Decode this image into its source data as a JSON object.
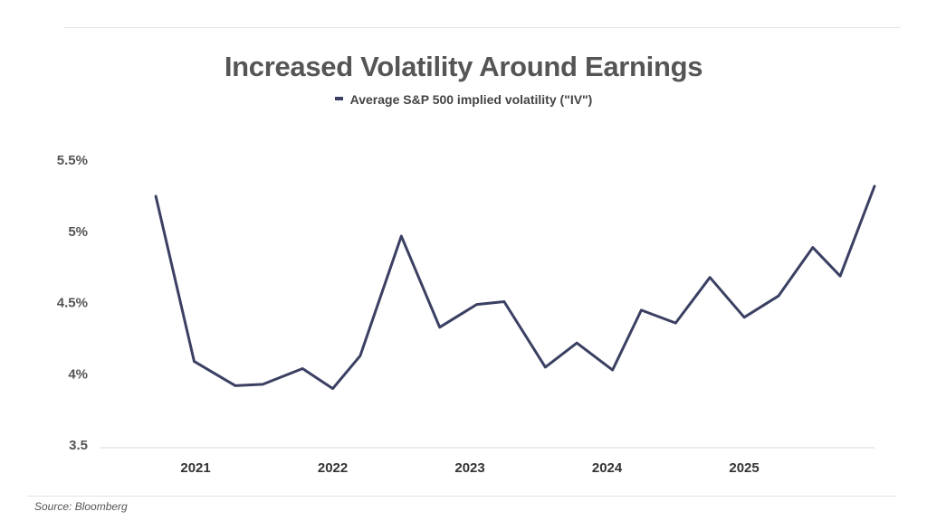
{
  "source": "Source: Bloomberg",
  "colors": {
    "line": "#3b4063",
    "axis": "#d9d9d9",
    "text": "#555555"
  },
  "chart_data": {
    "type": "line",
    "title": "Increased Volatility Around Earnings",
    "legend": "Average S&P 500 implied volatility (\"IV\")",
    "legend_position": "top-center",
    "grid": false,
    "ylim": [
      3.5,
      5.5
    ],
    "yticks": [
      {
        "value": 5.5,
        "label": "5.5%"
      },
      {
        "value": 5.0,
        "label": "5%"
      },
      {
        "value": 4.5,
        "label": "4.5%"
      },
      {
        "value": 4.0,
        "label": "4%"
      },
      {
        "value": 3.5,
        "label": "3.5"
      }
    ],
    "xlim": [
      2020.3,
      2025.95
    ],
    "xticks": [
      {
        "value": 2021,
        "label": "2021"
      },
      {
        "value": 2022,
        "label": "2022"
      },
      {
        "value": 2023,
        "label": "2023"
      },
      {
        "value": 2024,
        "label": "2024"
      },
      {
        "value": 2025,
        "label": "2025"
      }
    ],
    "series": [
      {
        "name": "Average S&P 500 implied volatility (\"IV\")",
        "x": [
          2020.71,
          2020.99,
          2021.29,
          2021.49,
          2021.78,
          2022.0,
          2022.2,
          2022.5,
          2022.78,
          2023.05,
          2023.25,
          2023.55,
          2023.78,
          2024.04,
          2024.25,
          2024.5,
          2024.75,
          2025.0,
          2025.25,
          2025.5,
          2025.7,
          2025.95
        ],
        "values": [
          5.24,
          4.08,
          3.91,
          3.92,
          4.03,
          3.89,
          4.12,
          4.96,
          4.32,
          4.48,
          4.5,
          4.04,
          4.21,
          4.02,
          4.44,
          4.35,
          4.67,
          4.39,
          4.54,
          4.88,
          4.68,
          5.31
        ]
      }
    ]
  }
}
